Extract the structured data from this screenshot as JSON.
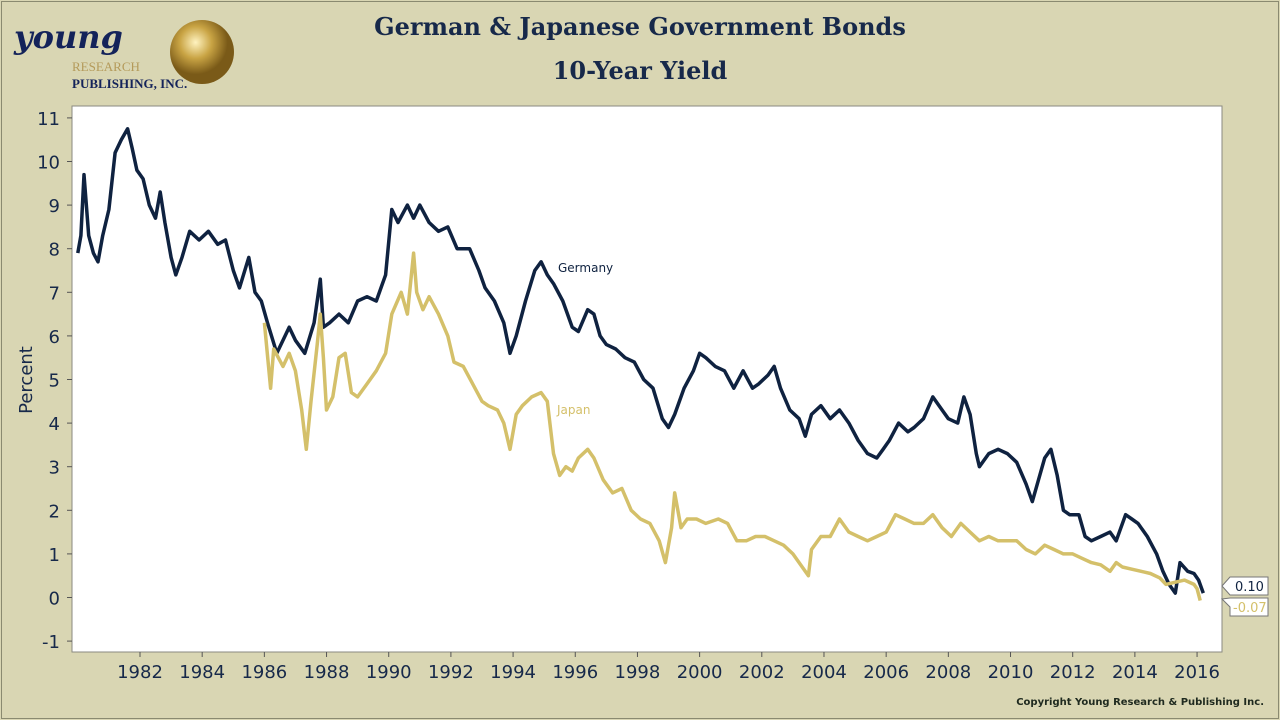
{
  "logo": {
    "main": "young",
    "sub1": "RESEARCH",
    "sub2": "PUBLISHING, INC."
  },
  "title_line1": "German & Japanese Government Bonds",
  "title_line2": "10-Year Yield",
  "copyright": "Copyright Young Research & Publishing Inc.",
  "chart_data": {
    "type": "line",
    "title": "German & Japanese Government Bonds 10-Year Yield",
    "ylabel": "Percent",
    "xlabel": "",
    "ylim": [
      -1.3,
      11.3
    ],
    "xlim": [
      1979.8,
      2016.8
    ],
    "yticks": [
      -1,
      0,
      1,
      2,
      3,
      4,
      5,
      6,
      7,
      8,
      9,
      10,
      11
    ],
    "xticks": [
      1982,
      1984,
      1986,
      1988,
      1990,
      1992,
      1994,
      1996,
      1998,
      2000,
      2002,
      2004,
      2006,
      2008,
      2010,
      2012,
      2014,
      2016
    ],
    "grid": false,
    "legend": "inline labels",
    "series": [
      {
        "name": "Germany",
        "color": "#0f2240",
        "last_value_label": "0.10",
        "x": [
          1980.0,
          1980.1,
          1980.2,
          1980.35,
          1980.5,
          1980.65,
          1980.8,
          1981.0,
          1981.2,
          1981.4,
          1981.6,
          1981.75,
          1981.9,
          1982.1,
          1982.3,
          1982.5,
          1982.65,
          1982.8,
          1983.0,
          1983.15,
          1983.35,
          1983.6,
          1983.9,
          1984.2,
          1984.5,
          1984.75,
          1985.0,
          1985.2,
          1985.5,
          1985.7,
          1985.9,
          1986.1,
          1986.4,
          1986.8,
          1987.0,
          1987.3,
          1987.6,
          1987.8,
          1987.9,
          1988.1,
          1988.4,
          1988.7,
          1989.0,
          1989.3,
          1989.6,
          1989.9,
          1990.1,
          1990.3,
          1990.6,
          1990.8,
          1991.0,
          1991.3,
          1991.6,
          1991.9,
          1992.2,
          1992.6,
          1992.9,
          1993.1,
          1993.4,
          1993.7,
          1993.9,
          1994.1,
          1994.4,
          1994.7,
          1994.9,
          1995.1,
          1995.3,
          1995.6,
          1995.9,
          1996.1,
          1996.4,
          1996.6,
          1996.8,
          1997.0,
          1997.3,
          1997.6,
          1997.9,
          1998.2,
          1998.5,
          1998.8,
          1999.0,
          1999.2,
          1999.5,
          1999.8,
          2000.0,
          2000.2,
          2000.5,
          2000.8,
          2001.1,
          2001.4,
          2001.7,
          2001.9,
          2002.2,
          2002.4,
          2002.6,
          2002.9,
          2003.2,
          2003.4,
          2003.6,
          2003.9,
          2004.2,
          2004.5,
          2004.8,
          2005.1,
          2005.4,
          2005.7,
          2005.9,
          2006.1,
          2006.4,
          2006.7,
          2006.9,
          2007.2,
          2007.5,
          2007.8,
          2008.0,
          2008.3,
          2008.5,
          2008.7,
          2008.9,
          2009.0,
          2009.3,
          2009.6,
          2009.9,
          2010.2,
          2010.5,
          2010.7,
          2010.9,
          2011.1,
          2011.3,
          2011.5,
          2011.7,
          2011.9,
          2012.2,
          2012.4,
          2012.6,
          2012.9,
          2013.2,
          2013.4,
          2013.7,
          2013.9,
          2014.1,
          2014.4,
          2014.7,
          2014.9,
          2015.1,
          2015.3,
          2015.45,
          2015.7,
          2015.9,
          2016.05,
          2016.2
        ],
        "y": [
          7.9,
          8.3,
          9.7,
          8.3,
          7.9,
          7.7,
          8.3,
          8.9,
          10.2,
          10.5,
          10.75,
          10.3,
          9.8,
          9.6,
          9.0,
          8.7,
          9.3,
          8.6,
          7.8,
          7.4,
          7.8,
          8.4,
          8.2,
          8.4,
          8.1,
          8.2,
          7.5,
          7.1,
          7.8,
          7.0,
          6.8,
          6.3,
          5.6,
          6.2,
          5.9,
          5.6,
          6.3,
          7.3,
          6.2,
          6.3,
          6.5,
          6.3,
          6.8,
          6.9,
          6.8,
          7.4,
          8.9,
          8.6,
          9.0,
          8.7,
          9.0,
          8.6,
          8.4,
          8.5,
          8.0,
          8.0,
          7.5,
          7.1,
          6.8,
          6.3,
          5.6,
          6.0,
          6.8,
          7.5,
          7.7,
          7.4,
          7.2,
          6.8,
          6.2,
          6.1,
          6.6,
          6.5,
          6.0,
          5.8,
          5.7,
          5.5,
          5.4,
          5.0,
          4.8,
          4.1,
          3.9,
          4.2,
          4.8,
          5.2,
          5.6,
          5.5,
          5.3,
          5.2,
          4.8,
          5.2,
          4.8,
          4.9,
          5.1,
          5.3,
          4.8,
          4.3,
          4.1,
          3.7,
          4.2,
          4.4,
          4.1,
          4.3,
          4.0,
          3.6,
          3.3,
          3.2,
          3.4,
          3.6,
          4.0,
          3.8,
          3.9,
          4.1,
          4.6,
          4.3,
          4.1,
          4.0,
          4.6,
          4.2,
          3.3,
          3.0,
          3.3,
          3.4,
          3.3,
          3.1,
          2.6,
          2.2,
          2.7,
          3.2,
          3.4,
          2.8,
          2.0,
          1.9,
          1.9,
          1.4,
          1.3,
          1.4,
          1.5,
          1.3,
          1.9,
          1.8,
          1.7,
          1.4,
          1.0,
          0.6,
          0.3,
          0.1,
          0.8,
          0.6,
          0.55,
          0.4,
          0.1
        ]
      },
      {
        "name": "Japan",
        "color": "#d4c06a",
        "last_value_label": "-0.07",
        "x": [
          1986.0,
          1986.2,
          1986.3,
          1986.6,
          1986.8,
          1987.0,
          1987.2,
          1987.35,
          1987.5,
          1987.7,
          1987.8,
          1987.9,
          1988.0,
          1988.2,
          1988.4,
          1988.6,
          1988.8,
          1989.0,
          1989.3,
          1989.6,
          1989.9,
          1990.1,
          1990.4,
          1990.6,
          1990.8,
          1990.9,
          1991.1,
          1991.3,
          1991.6,
          1991.9,
          1992.1,
          1992.4,
          1992.7,
          1993.0,
          1993.2,
          1993.5,
          1993.7,
          1993.9,
          1994.1,
          1994.3,
          1994.6,
          1994.9,
          1995.1,
          1995.3,
          1995.5,
          1995.7,
          1995.9,
          1996.1,
          1996.4,
          1996.6,
          1996.9,
          1997.2,
          1997.5,
          1997.8,
          1998.1,
          1998.4,
          1998.7,
          1998.9,
          1999.1,
          1999.2,
          1999.4,
          1999.6,
          1999.9,
          2000.2,
          2000.6,
          2000.9,
          2001.2,
          2001.5,
          2001.8,
          2002.1,
          2002.4,
          2002.7,
          2003.0,
          2003.3,
          2003.5,
          2003.6,
          2003.9,
          2004.2,
          2004.5,
          2004.8,
          2005.1,
          2005.4,
          2005.7,
          2006.0,
          2006.3,
          2006.6,
          2006.9,
          2007.2,
          2007.5,
          2007.8,
          2008.1,
          2008.4,
          2008.7,
          2009.0,
          2009.3,
          2009.6,
          2009.9,
          2010.2,
          2010.5,
          2010.8,
          2011.1,
          2011.4,
          2011.7,
          2012.0,
          2012.3,
          2012.6,
          2012.9,
          2013.2,
          2013.4,
          2013.6,
          2013.9,
          2014.2,
          2014.5,
          2014.8,
          2015.0,
          2015.3,
          2015.6,
          2015.9,
          2016.0,
          2016.1
        ],
        "y": [
          6.3,
          4.8,
          5.7,
          5.3,
          5.6,
          5.2,
          4.3,
          3.4,
          4.5,
          5.8,
          6.5,
          5.5,
          4.3,
          4.6,
          5.5,
          5.6,
          4.7,
          4.6,
          4.9,
          5.2,
          5.6,
          6.5,
          7.0,
          6.5,
          7.9,
          7.0,
          6.6,
          6.9,
          6.5,
          6.0,
          5.4,
          5.3,
          4.9,
          4.5,
          4.4,
          4.3,
          4.0,
          3.4,
          4.2,
          4.4,
          4.6,
          4.7,
          4.5,
          3.3,
          2.8,
          3.0,
          2.9,
          3.2,
          3.4,
          3.2,
          2.7,
          2.4,
          2.5,
          2.0,
          1.8,
          1.7,
          1.3,
          0.8,
          1.6,
          2.4,
          1.6,
          1.8,
          1.8,
          1.7,
          1.8,
          1.7,
          1.3,
          1.3,
          1.4,
          1.4,
          1.3,
          1.2,
          1.0,
          0.7,
          0.5,
          1.1,
          1.4,
          1.4,
          1.8,
          1.5,
          1.4,
          1.3,
          1.4,
          1.5,
          1.9,
          1.8,
          1.7,
          1.7,
          1.9,
          1.6,
          1.4,
          1.7,
          1.5,
          1.3,
          1.4,
          1.3,
          1.3,
          1.3,
          1.1,
          1.0,
          1.2,
          1.1,
          1.0,
          1.0,
          0.9,
          0.8,
          0.75,
          0.6,
          0.8,
          0.7,
          0.65,
          0.6,
          0.55,
          0.45,
          0.3,
          0.35,
          0.4,
          0.3,
          0.2,
          -0.07
        ]
      }
    ]
  }
}
